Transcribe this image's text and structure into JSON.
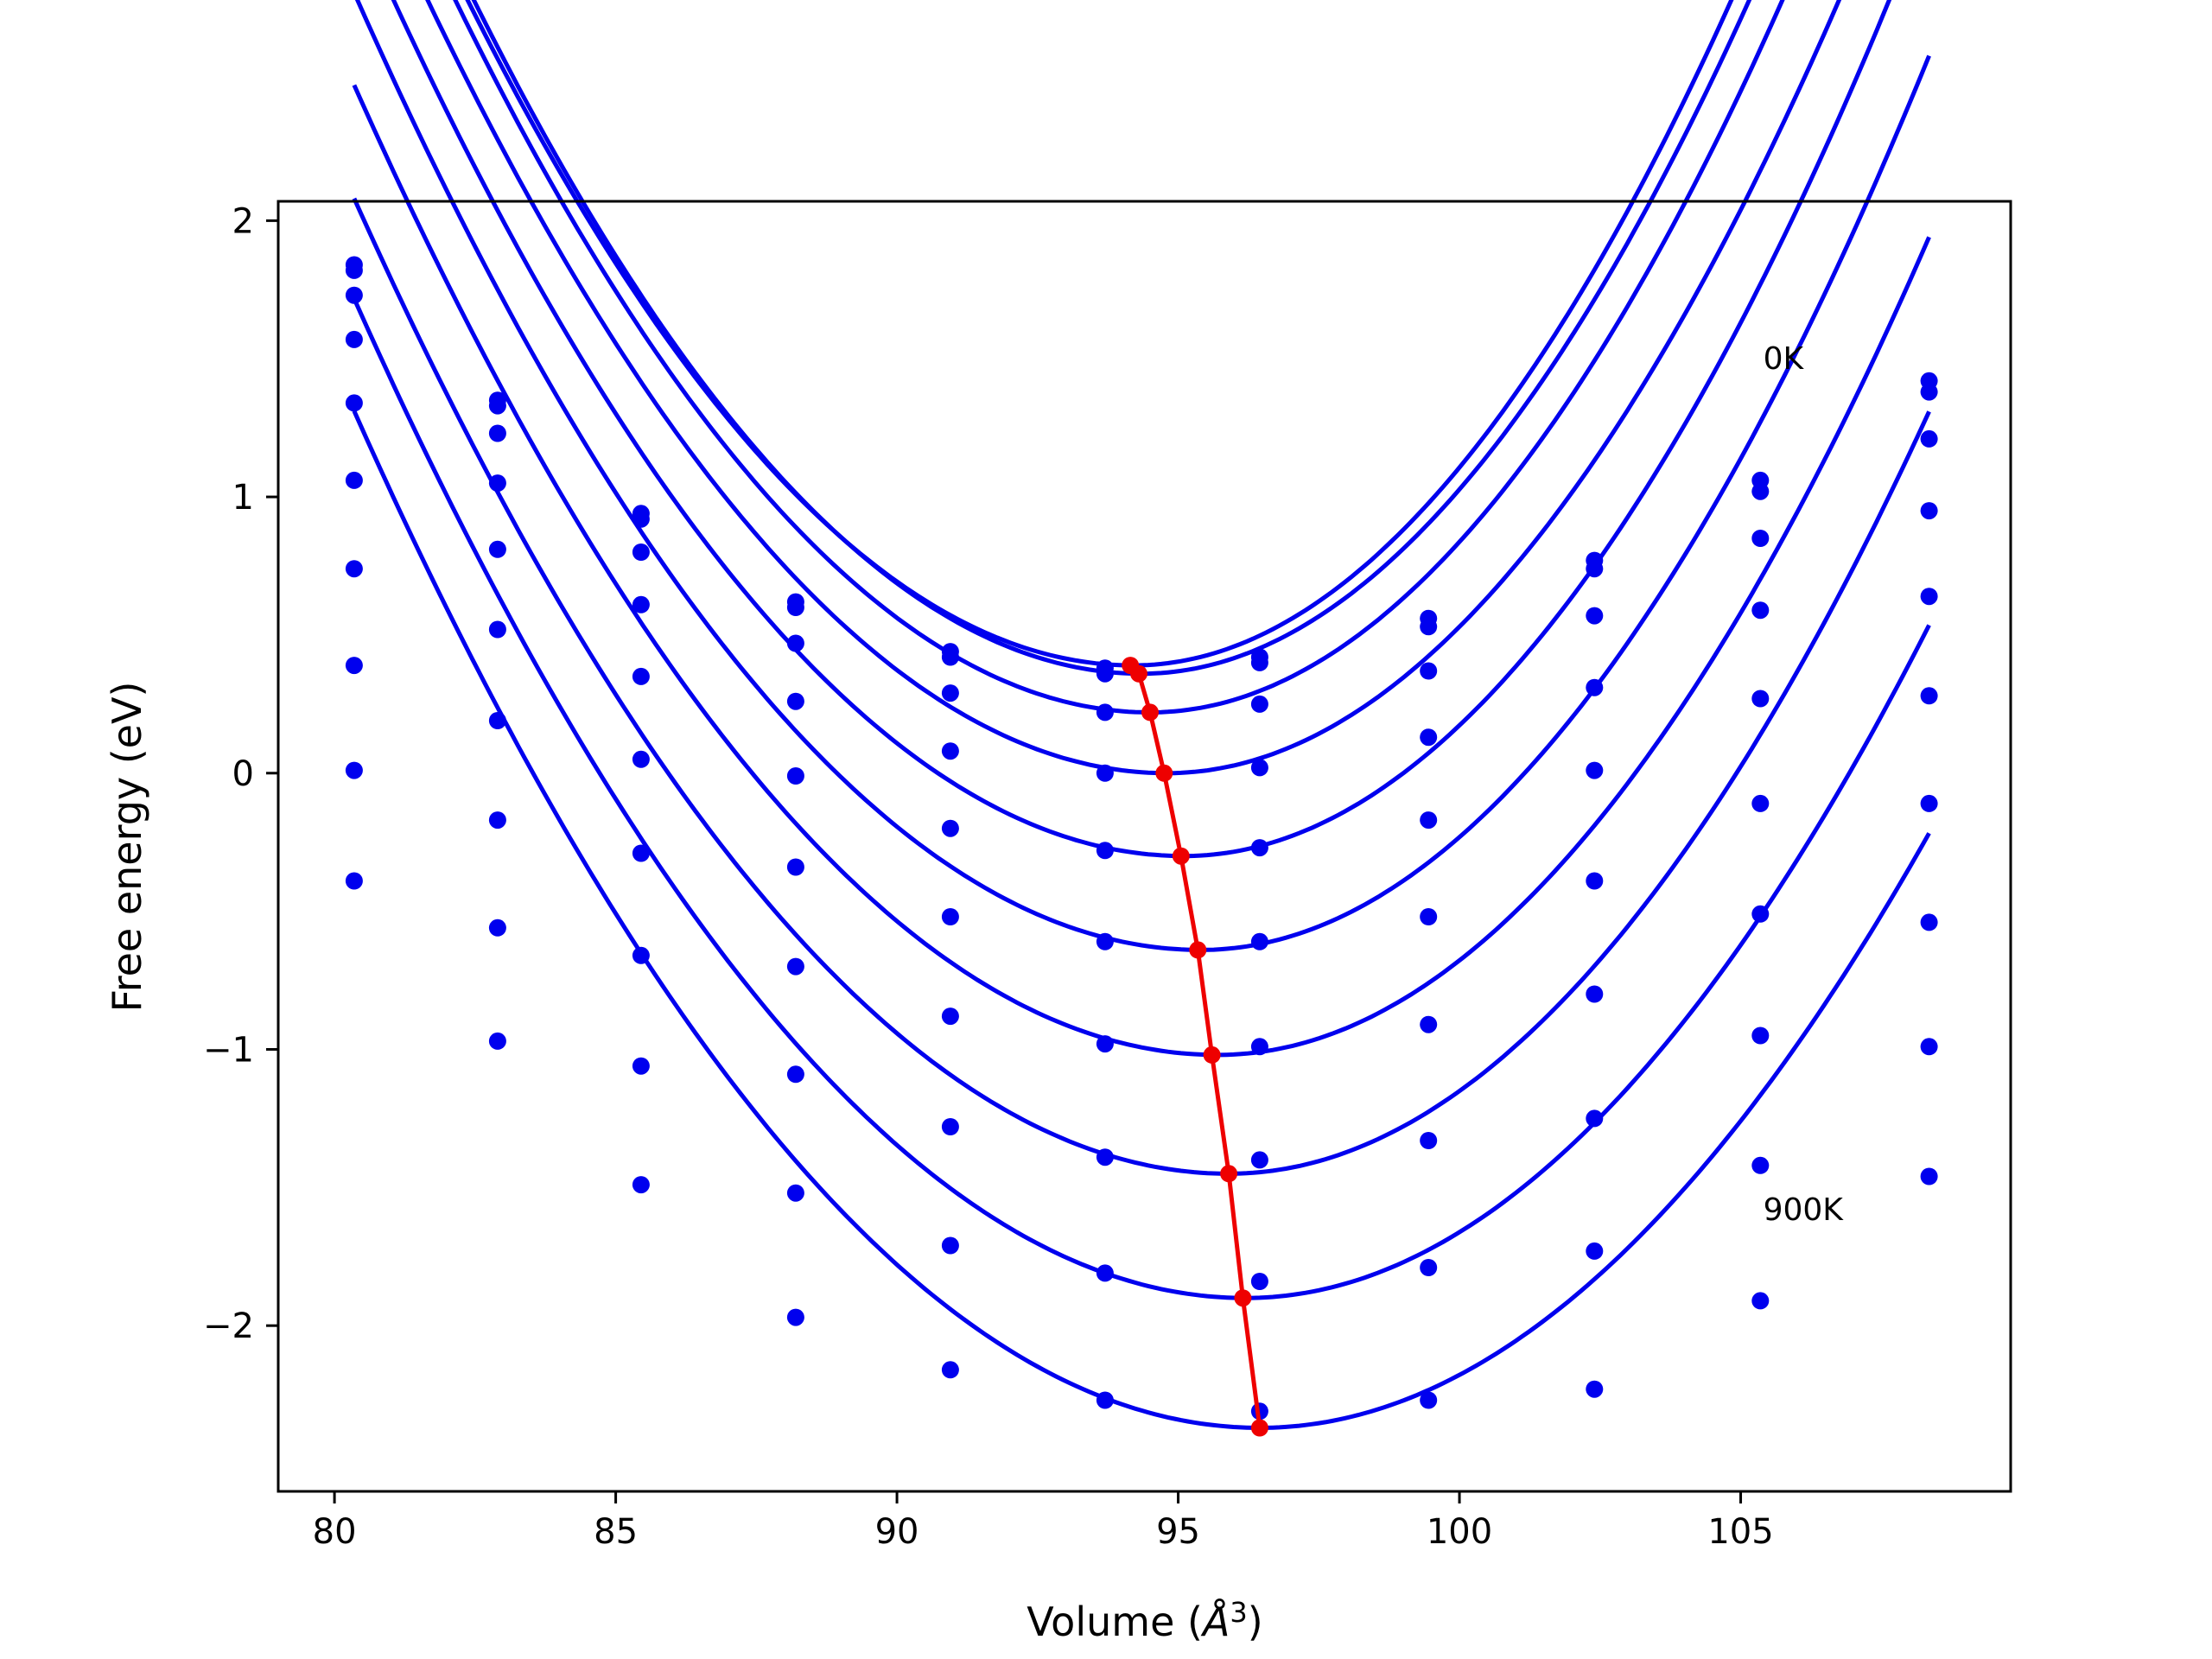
{
  "chart_data": {
    "type": "line",
    "title": "",
    "xlabel": "Volume (",
    "xlabel_italic": "Å",
    "xlabel_sup": "3",
    "xlabel_tail": ")",
    "ylabel": "Free energy (eV)",
    "xlim": [
      79,
      109.8
    ],
    "ylim": [
      -2.6,
      2.07
    ],
    "xticks": [
      80,
      85,
      90,
      95,
      100,
      105
    ],
    "xtick_labels": [
      "80",
      "85",
      "90",
      "95",
      "100",
      "105"
    ],
    "yticks": [
      2,
      1,
      0,
      -1,
      -2
    ],
    "ytick_labels": [
      "2",
      "1",
      "0",
      "−1",
      "−2"
    ],
    "grid": false,
    "legend": "none",
    "curve_color": "#0000ee",
    "min_color": "#ee0000",
    "volumes": [
      80.35,
      82.9,
      85.45,
      88.2,
      90.95,
      93.7,
      96.45,
      99.45,
      102.4,
      105.35,
      108.35
    ],
    "series": [
      {
        "points": [
          1.84,
          1.35,
          0.94,
          0.62,
          0.44,
          0.38,
          0.42,
          0.56,
          0.77,
          1.06,
          1.42
        ],
        "fit": {
          "vmin": 94.2,
          "fmin": 0.39,
          "k_left": 0.0172,
          "k_right": 0.0213
        }
      },
      {
        "points": [
          1.82,
          1.33,
          0.92,
          0.6,
          0.42,
          0.36,
          0.4,
          0.53,
          0.74,
          1.02,
          1.38
        ],
        "fit": {
          "vmin": 94.35,
          "fmin": 0.36,
          "k_left": 0.0173,
          "k_right": 0.0209
        }
      },
      {
        "points": [
          1.73,
          1.23,
          0.8,
          0.47,
          0.29,
          0.22,
          0.25,
          0.37,
          0.57,
          0.85,
          1.21
        ],
        "fit": {
          "vmin": 94.5,
          "fmin": 0.22,
          "k_left": 0.0169,
          "k_right": 0.0204
        }
      },
      {
        "points": [
          1.57,
          1.05,
          0.61,
          0.26,
          0.08,
          0.0,
          0.02,
          0.13,
          0.31,
          0.59,
          0.95
        ],
        "fit": {
          "vmin": 94.8,
          "fmin": 0.0,
          "k_left": 0.0162,
          "k_right": 0.0196
        }
      },
      {
        "points": [
          1.34,
          0.81,
          0.35,
          -0.01,
          -0.2,
          -0.28,
          -0.27,
          -0.17,
          0.01,
          0.27,
          0.64
        ],
        "fit": {
          "vmin": 95.1,
          "fmin": -0.3,
          "k_left": 0.0157,
          "k_right": 0.0197
        }
      },
      {
        "points": [
          1.06,
          0.52,
          0.05,
          -0.34,
          -0.52,
          -0.61,
          -0.61,
          -0.52,
          -0.39,
          -0.11,
          0.28
        ],
        "fit": {
          "vmin": 95.4,
          "fmin": -0.64,
          "k_left": 0.0153,
          "k_right": 0.0193
        }
      },
      {
        "points": [
          0.74,
          0.19,
          -0.29,
          -0.7,
          -0.88,
          -0.98,
          -0.99,
          -0.91,
          -0.8,
          -0.51,
          -0.11
        ],
        "fit": {
          "vmin": 95.7,
          "fmin": -1.02,
          "k_left": 0.0149,
          "k_right": 0.0185
        }
      },
      {
        "points": [
          0.39,
          -0.17,
          -0.66,
          -1.09,
          -1.28,
          -1.39,
          -1.4,
          -1.33,
          -1.25,
          -0.95,
          -0.54
        ],
        "fit": {
          "vmin": 95.9,
          "fmin": -1.45,
          "k_left": 0.0146,
          "k_right": 0.0178
        }
      },
      {
        "points": [
          0.01,
          -0.56,
          -1.06,
          -1.52,
          -1.71,
          -1.81,
          -1.84,
          -1.79,
          -1.73,
          -1.42,
          -0.99
        ],
        "fit": {
          "vmin": 96.2,
          "fmin": -1.9,
          "k_left": 0.0144,
          "k_right": 0.0165
        }
      },
      {
        "points": [
          -0.39,
          -0.97,
          -1.49,
          -1.97,
          -2.16,
          -2.27,
          -2.31,
          -2.27,
          -2.23,
          -1.91,
          -1.46
        ],
        "fit": {
          "vmin": 96.45,
          "fmin": -2.37,
          "k_left": 0.0142,
          "k_right": 0.0152
        }
      }
    ],
    "minima": {
      "x": [
        94.15,
        94.3,
        94.5,
        94.75,
        95.05,
        95.35,
        95.6,
        95.9,
        96.15,
        96.45
      ],
      "y": [
        0.39,
        0.36,
        0.22,
        0.0,
        -0.3,
        -0.64,
        -1.02,
        -1.45,
        -1.9,
        -2.37
      ]
    },
    "annotations": [
      {
        "text": "0K",
        "x": 105.4,
        "y": 1.5
      },
      {
        "text": "900K",
        "x": 105.4,
        "y": -1.58
      }
    ]
  }
}
